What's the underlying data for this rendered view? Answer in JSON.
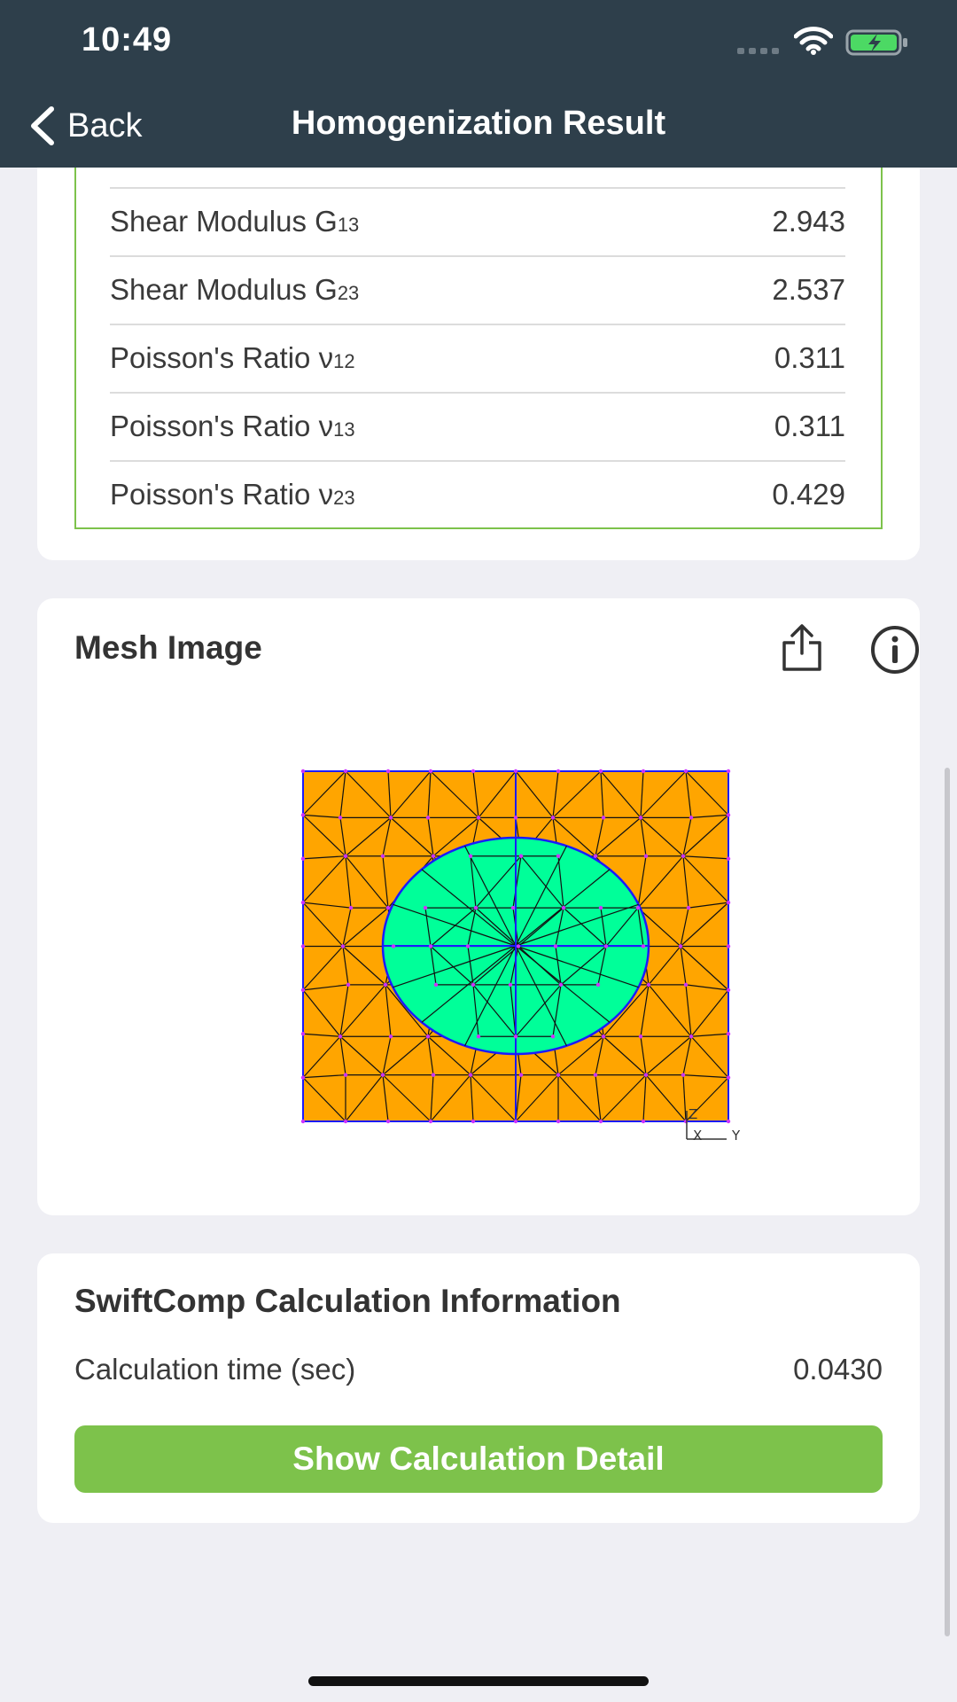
{
  "status_bar": {
    "time": "10:49"
  },
  "nav": {
    "back_label": "Back",
    "title": "Homogenization Result"
  },
  "properties": [
    {
      "label": "Shear Modulus G",
      "sub": "13",
      "value": "2.943"
    },
    {
      "label": "Shear Modulus G",
      "sub": "23",
      "value": "2.537"
    },
    {
      "label": "Poisson's Ratio ν",
      "sub": "12",
      "value": "0.311"
    },
    {
      "label": "Poisson's Ratio ν",
      "sub": "13",
      "value": "0.311"
    },
    {
      "label": "Poisson's Ratio ν",
      "sub": "23",
      "value": "0.429"
    }
  ],
  "mesh": {
    "title": "Mesh Image",
    "axis_labels": {
      "z": "Z",
      "x": "X",
      "y": "Y"
    },
    "colors": {
      "matrix": "#ffa500",
      "fiber": "#00ff99",
      "edge": "#0000ff",
      "node": "#cc33ff"
    }
  },
  "calc": {
    "title": "SwiftComp Calculation Information",
    "time_label": "Calculation time (sec)",
    "time_value": "0.0430",
    "detail_button": "Show Calculation Detail"
  },
  "colors": {
    "header_bg": "#2e3f4b",
    "accent_green": "#7dc24b",
    "page_bg": "#efeff4"
  }
}
